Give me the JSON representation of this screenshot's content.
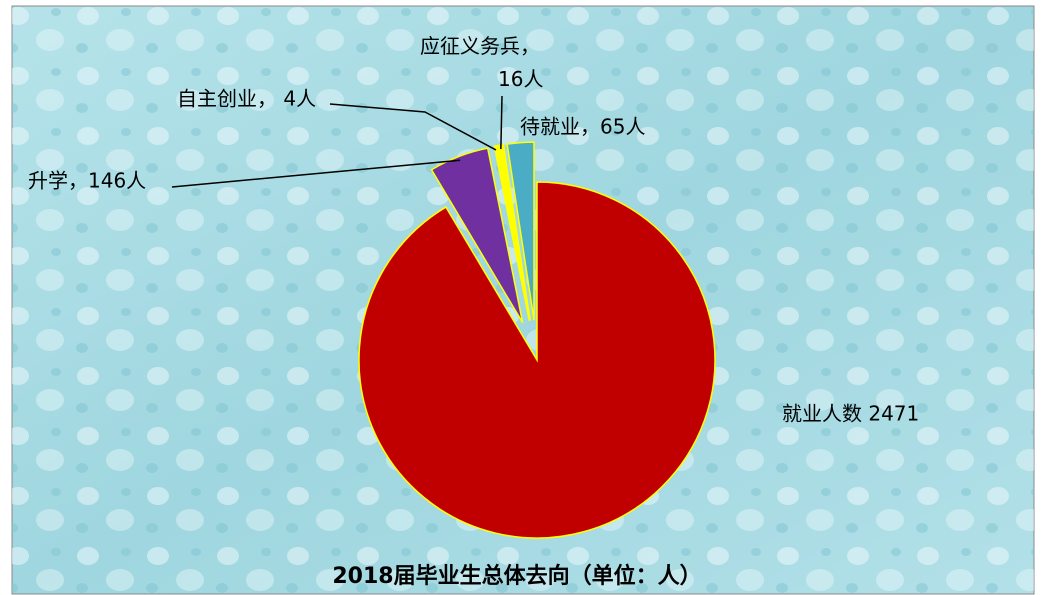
{
  "chart_data": {
    "type": "pie",
    "title": "2018届毕业生总体去向（单位：人）",
    "values": [
      2471,
      146,
      4,
      16,
      65
    ],
    "value_labels": [
      "就业人数 2471",
      "升学，146人",
      "自主创业， 4人",
      "应征义务兵，\n16人",
      "待就业，65人"
    ],
    "colors": [
      "#c00000",
      "#7030a0",
      "#ffff66",
      "#ffff00",
      "#4bacc6"
    ]
  }
}
